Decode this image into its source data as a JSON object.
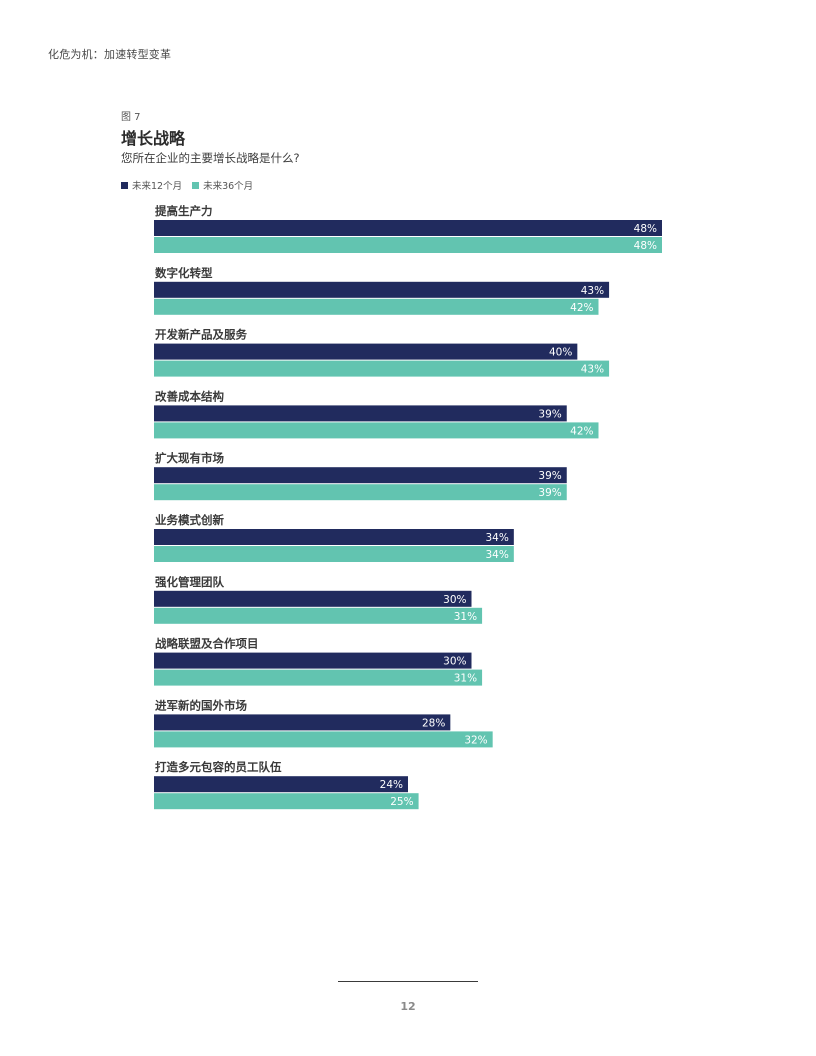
{
  "header": {
    "running_title": "化危为机：加速转型变革"
  },
  "figure": {
    "label": "图 7",
    "title": "增长战略",
    "subtitle": "您所在企业的主要增长战略是什么?"
  },
  "colors": {
    "series_12": "#212b5e",
    "series_36": "#62c4b0",
    "label_text": "#ffffff",
    "category_text": "#3a3a3a"
  },
  "chart_data": {
    "type": "bar",
    "orientation": "horizontal",
    "title": "增长战略",
    "subtitle": "您所在企业的主要增长战略是什么?",
    "xlabel": "",
    "ylabel": "",
    "xlim": [
      0,
      48
    ],
    "grid": false,
    "legend_position": "top-left",
    "categories": [
      "提高生产力",
      "数字化转型",
      "开发新产品及服务",
      "改善成本结构",
      "扩大现有市场",
      "业务模式创新",
      "强化管理团队",
      "战略联盟及合作项目",
      "进军新的国外市场",
      "打造多元包容的员工队伍"
    ],
    "series": [
      {
        "name": "未来12个月",
        "values": [
          48,
          43,
          40,
          39,
          39,
          34,
          30,
          30,
          28,
          24
        ],
        "labels": [
          "48%",
          "43%",
          "40%",
          "39%",
          "39%",
          "34%",
          "30%",
          "30%",
          "28%",
          "24%"
        ]
      },
      {
        "name": "未来36个月",
        "values": [
          48,
          42,
          43,
          42,
          39,
          34,
          31,
          31,
          32,
          25
        ],
        "labels": [
          "48%",
          "42%",
          "43%",
          "42%",
          "39%",
          "34%",
          "31%",
          "31%",
          "32%",
          "25%"
        ]
      }
    ]
  },
  "footer": {
    "page_number": "12"
  }
}
